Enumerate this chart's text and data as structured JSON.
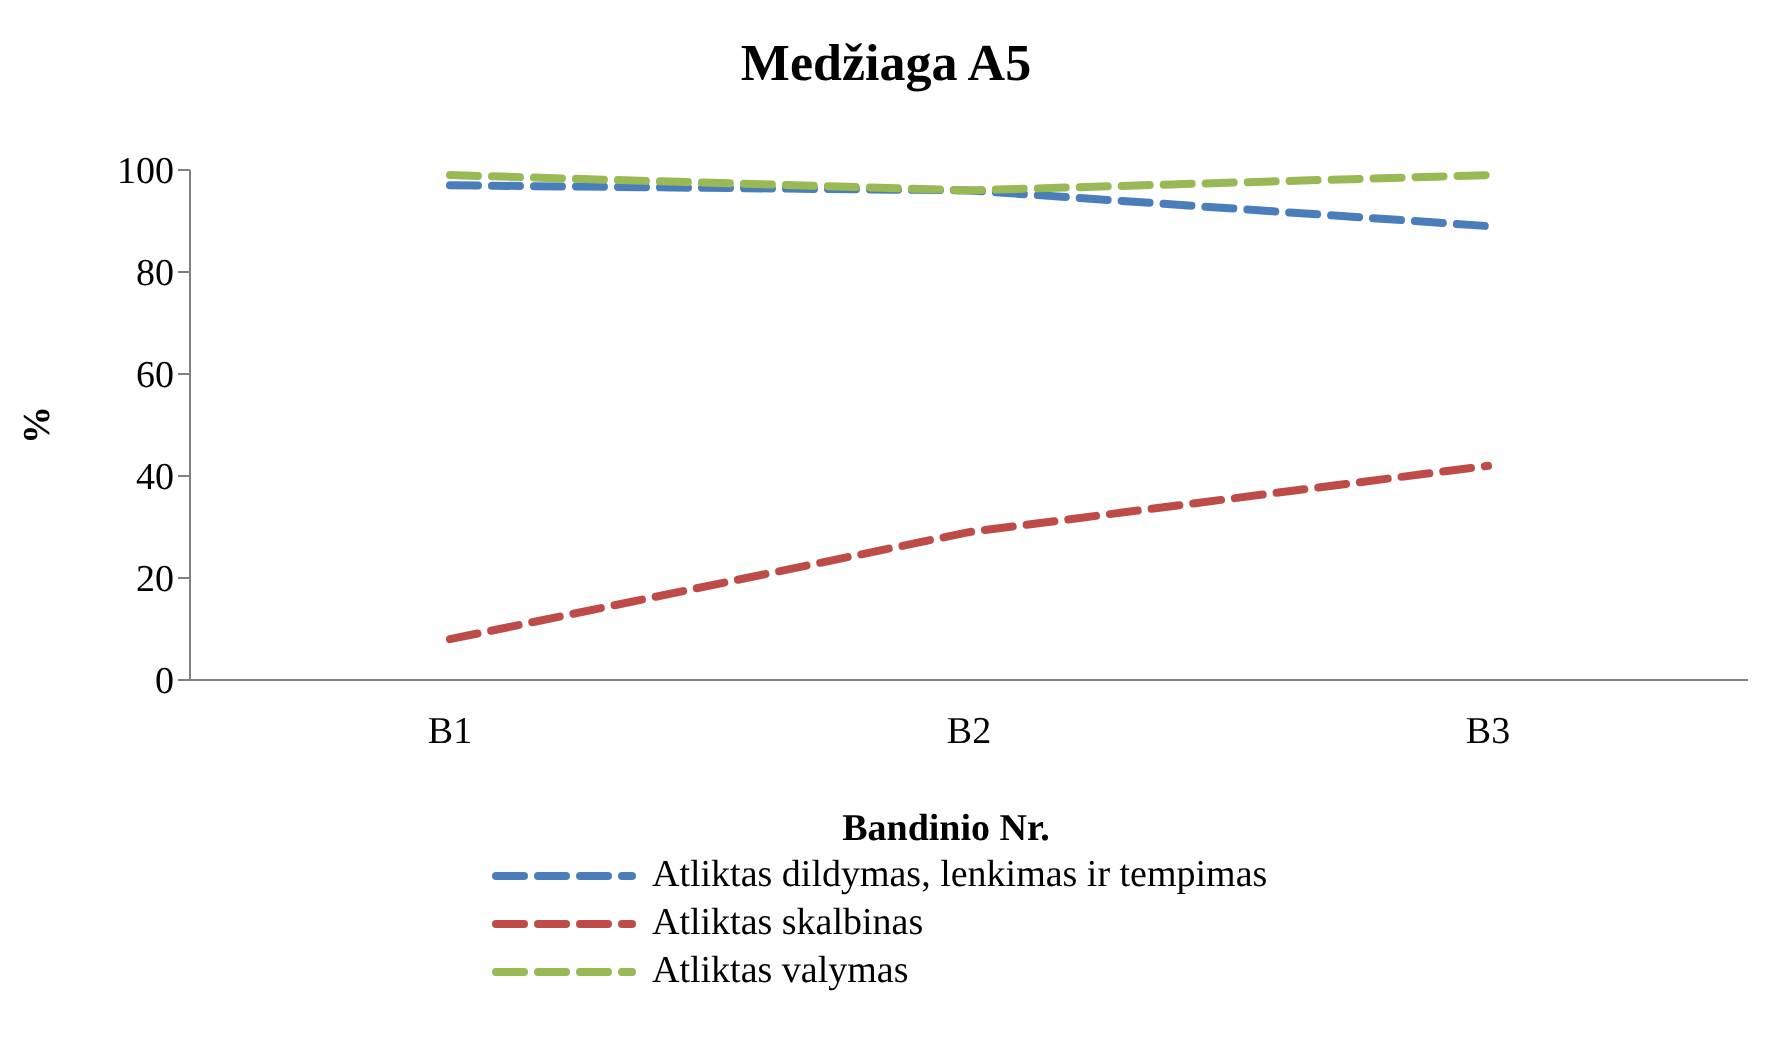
{
  "chart_data": {
    "type": "line",
    "title": "Medžiaga A5",
    "xlabel": "Bandinio Nr.",
    "ylabel": "%",
    "categories": [
      "B1",
      "B2",
      "B3"
    ],
    "series": [
      {
        "name": "Atliktas dildymas, lenkimas ir tempimas",
        "color": "#4a7ebb",
        "values": [
          97,
          96,
          89
        ],
        "line_style": "dashed"
      },
      {
        "name": "Atliktas skalbinas",
        "color": "#be4b48",
        "values": [
          8,
          29,
          42
        ],
        "line_style": "dashed"
      },
      {
        "name": "Atliktas valymas",
        "color": "#98b954",
        "values": [
          99,
          96,
          99
        ],
        "line_style": "dashed"
      }
    ],
    "ylim": [
      0,
      100
    ],
    "yticks": [
      0,
      20,
      40,
      60,
      80,
      100
    ],
    "grid": false,
    "legend": "bottom",
    "marker": "none"
  }
}
